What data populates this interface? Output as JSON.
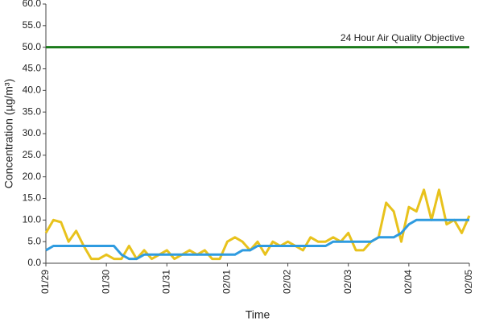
{
  "chart_data": {
    "type": "line",
    "ylabel": "Concentration (µg/m³)",
    "xlabel": "Time",
    "categories": [
      "01/29",
      null,
      null,
      null,
      null,
      null,
      null,
      null,
      "01/30",
      null,
      null,
      null,
      null,
      null,
      null,
      null,
      "01/31",
      null,
      null,
      null,
      null,
      null,
      null,
      null,
      "02/01",
      null,
      null,
      null,
      null,
      null,
      null,
      null,
      "02/02",
      null,
      null,
      null,
      null,
      null,
      null,
      null,
      "02/03",
      null,
      null,
      null,
      null,
      null,
      null,
      null,
      "02/04",
      null,
      null,
      null,
      null,
      null,
      null,
      null,
      "02/05"
    ],
    "series": [
      {
        "color": "#e8c21c",
        "values": [
          7,
          10,
          9.5,
          5,
          7.5,
          4,
          1,
          1,
          2,
          1,
          1,
          4,
          1,
          3,
          1,
          2,
          3,
          1,
          2,
          3,
          2,
          3,
          1,
          1,
          5,
          6,
          5,
          3,
          5,
          2,
          5,
          4,
          5,
          4,
          3,
          6,
          5,
          5,
          6,
          5,
          7,
          3,
          3,
          5,
          6,
          14,
          12,
          5,
          13,
          12,
          17,
          10,
          17,
          9,
          10,
          7,
          11
        ]
      },
      {
        "color": "#2e9be0",
        "values": [
          3,
          4,
          4,
          4,
          4,
          4,
          4,
          4,
          4,
          4,
          2,
          1,
          1,
          2,
          2,
          2,
          2,
          2,
          2,
          2,
          2,
          2,
          2,
          2,
          2,
          2,
          3,
          3,
          4,
          4,
          4,
          4,
          4,
          4,
          4,
          4,
          4,
          4,
          5,
          5,
          5,
          5,
          5,
          5,
          6,
          6,
          6,
          7,
          9,
          10,
          10,
          10,
          10,
          10,
          10,
          10,
          10
        ]
      }
    ],
    "objective": {
      "label": "24 Hour Air Quality Objective",
      "value": 50,
      "color": "#1a7a1a"
    },
    "ylim": [
      0,
      60
    ],
    "yticks": [
      {
        "value": 0,
        "label": "0.0"
      },
      {
        "value": 5,
        "label": "5.0"
      },
      {
        "value": 10,
        "label": "10.0"
      },
      {
        "value": 15,
        "label": "15.0"
      },
      {
        "value": 20,
        "label": "20.0"
      },
      {
        "value": 25,
        "label": "25.0"
      },
      {
        "value": 30,
        "label": "30.0"
      },
      {
        "value": 35,
        "label": "35.0"
      },
      {
        "value": 40,
        "label": "40.0"
      },
      {
        "value": 45,
        "label": "45.0"
      },
      {
        "value": 50,
        "label": "50.0"
      },
      {
        "value": 55,
        "label": "55.0"
      },
      {
        "value": 60,
        "label": "60.0"
      }
    ]
  }
}
